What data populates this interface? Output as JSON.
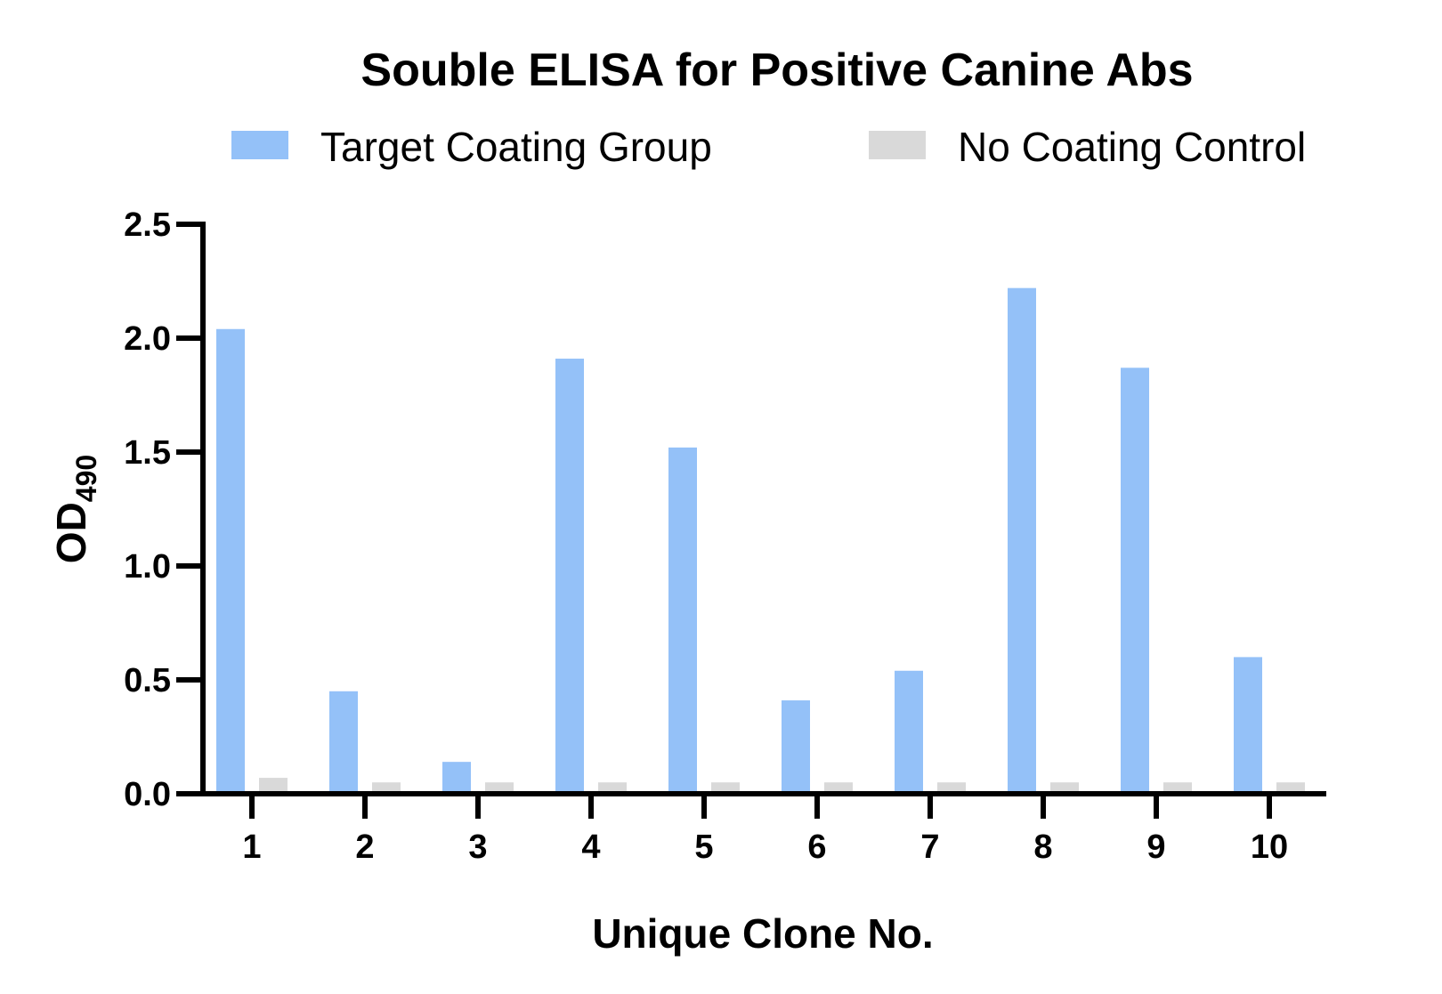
{
  "chart_data": {
    "type": "bar",
    "title": "Souble ELISA for Positive Canine Abs",
    "xlabel": "Unique Clone No.",
    "ylabel": "OD",
    "ylabel_subscript": "490",
    "categories": [
      "1",
      "2",
      "3",
      "4",
      "5",
      "6",
      "7",
      "8",
      "9",
      "10"
    ],
    "ylim": [
      0,
      2.5
    ],
    "yticks": [
      "0.0",
      "0.5",
      "1.0",
      "1.5",
      "2.0",
      "2.5"
    ],
    "ytick_values": [
      0,
      0.5,
      1.0,
      1.5,
      2.0,
      2.5
    ],
    "grid": false,
    "legend": "top",
    "series": [
      {
        "name": "Target Coating Group",
        "color": "#94c1f8",
        "values": [
          2.04,
          0.45,
          0.14,
          1.91,
          1.52,
          0.41,
          0.54,
          2.22,
          1.87,
          0.6
        ]
      },
      {
        "name": "No Coating Control",
        "color": "#d9d9d9",
        "values": [
          0.07,
          0.05,
          0.05,
          0.05,
          0.05,
          0.05,
          0.05,
          0.05,
          0.05,
          0.05
        ]
      }
    ]
  }
}
